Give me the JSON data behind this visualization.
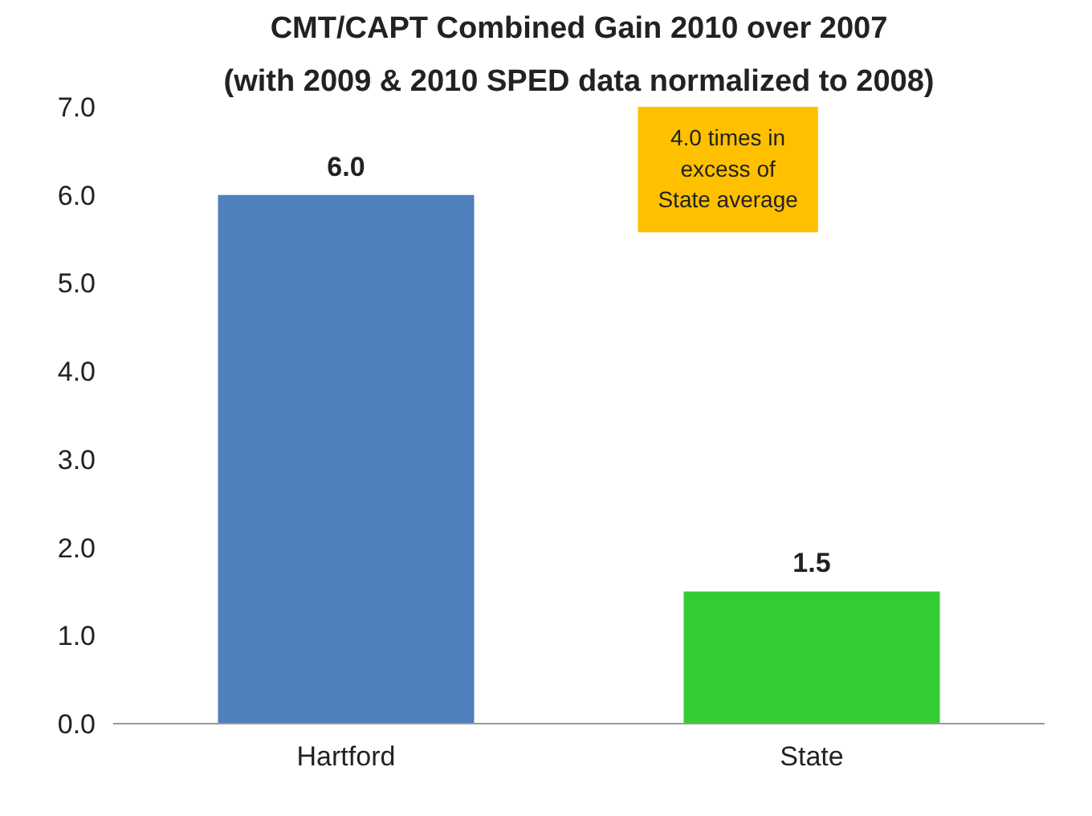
{
  "chart_data": {
    "type": "bar",
    "title": "CMT/CAPT Combined Gain 2010 over 2007",
    "subtitle": "(with 2009 & 2010 SPED data normalized to 2008)",
    "categories": [
      "Hartford",
      "State"
    ],
    "values": [
      6.0,
      1.5
    ],
    "colors": [
      "#4f81bd",
      "#33cc33"
    ],
    "value_labels": [
      "6.0",
      "1.5"
    ],
    "ylim": [
      0,
      7
    ],
    "yticks": [
      {
        "value": 0,
        "label": "0.0"
      },
      {
        "value": 1,
        "label": "1.0"
      },
      {
        "value": 2,
        "label": "2.0"
      },
      {
        "value": 3,
        "label": "3.0"
      },
      {
        "value": 4,
        "label": "4.0"
      },
      {
        "value": 5,
        "label": "5.0"
      },
      {
        "value": 6,
        "label": "6.0"
      },
      {
        "value": 7,
        "label": "7.0"
      }
    ],
    "grid": false,
    "annotations": [
      "4.0 times in\nexcess of\nState average"
    ]
  }
}
